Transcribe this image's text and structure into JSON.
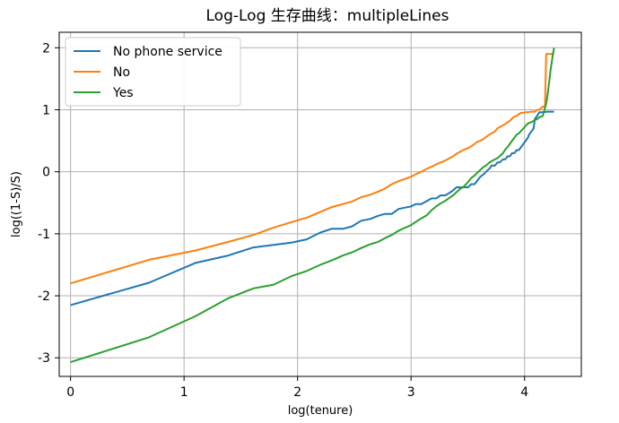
{
  "chart_data": {
    "type": "line",
    "title": "Log-Log 生存曲线：multipleLines",
    "xlabel": "log(tenure)",
    "ylabel": "log((1-S)/S)",
    "xlim": [
      -0.1,
      4.5
    ],
    "ylim": [
      -3.3,
      2.25
    ],
    "x_ticks": [
      0,
      1,
      2,
      3,
      4
    ],
    "x_tick_labels": [
      "0",
      "1",
      "2",
      "3",
      "4"
    ],
    "y_ticks": [
      -3,
      -2,
      -1,
      0,
      1,
      2
    ],
    "y_tick_labels": [
      "-3",
      "-2",
      "-1",
      "0",
      "1",
      "2"
    ],
    "grid": true,
    "legend_position": "top-left",
    "series": [
      {
        "name": "No phone service",
        "color": "#1f77b4",
        "points": [
          [
            0,
            -2.15
          ],
          [
            0.69,
            -1.79
          ],
          [
            1.1,
            -1.47
          ],
          [
            1.39,
            -1.35
          ],
          [
            1.61,
            -1.22
          ],
          [
            1.79,
            -1.18
          ],
          [
            1.95,
            -1.14
          ],
          [
            2.08,
            -1.09
          ],
          [
            2.2,
            -0.98
          ],
          [
            2.3,
            -0.92
          ],
          [
            2.4,
            -0.92
          ],
          [
            2.48,
            -0.88
          ],
          [
            2.56,
            -0.79
          ],
          [
            2.64,
            -0.76
          ],
          [
            2.71,
            -0.71
          ],
          [
            2.77,
            -0.68
          ],
          [
            2.83,
            -0.68
          ],
          [
            2.89,
            -0.6
          ],
          [
            2.94,
            -0.58
          ],
          [
            3.0,
            -0.56
          ],
          [
            3.04,
            -0.52
          ],
          [
            3.09,
            -0.52
          ],
          [
            3.14,
            -0.47
          ],
          [
            3.18,
            -0.43
          ],
          [
            3.22,
            -0.43
          ],
          [
            3.26,
            -0.38
          ],
          [
            3.3,
            -0.38
          ],
          [
            3.33,
            -0.35
          ],
          [
            3.37,
            -0.3
          ],
          [
            3.4,
            -0.25
          ],
          [
            3.43,
            -0.25
          ],
          [
            3.47,
            -0.25
          ],
          [
            3.5,
            -0.25
          ],
          [
            3.53,
            -0.2
          ],
          [
            3.56,
            -0.2
          ],
          [
            3.58,
            -0.15
          ],
          [
            3.61,
            -0.08
          ],
          [
            3.64,
            -0.04
          ],
          [
            3.66,
            0.0
          ],
          [
            3.69,
            0.05
          ],
          [
            3.71,
            0.1
          ],
          [
            3.74,
            0.1
          ],
          [
            3.76,
            0.15
          ],
          [
            3.78,
            0.15
          ],
          [
            3.81,
            0.2
          ],
          [
            3.83,
            0.2
          ],
          [
            3.85,
            0.25
          ],
          [
            3.87,
            0.25
          ],
          [
            3.89,
            0.3
          ],
          [
            3.91,
            0.3
          ],
          [
            3.93,
            0.35
          ],
          [
            3.95,
            0.35
          ],
          [
            3.97,
            0.4
          ],
          [
            3.99,
            0.45
          ],
          [
            4.01,
            0.5
          ],
          [
            4.03,
            0.55
          ],
          [
            4.04,
            0.6
          ],
          [
            4.06,
            0.65
          ],
          [
            4.08,
            0.7
          ],
          [
            4.09,
            0.85
          ],
          [
            4.11,
            0.9
          ],
          [
            4.13,
            0.96
          ],
          [
            4.14,
            0.96
          ],
          [
            4.16,
            0.96
          ],
          [
            4.2,
            0.97
          ],
          [
            4.26,
            0.97
          ]
        ]
      },
      {
        "name": "No",
        "color": "#ff7f0e",
        "points": [
          [
            0,
            -1.8
          ],
          [
            0.69,
            -1.42
          ],
          [
            1.1,
            -1.27
          ],
          [
            1.39,
            -1.13
          ],
          [
            1.61,
            -1.02
          ],
          [
            1.79,
            -0.9
          ],
          [
            1.95,
            -0.81
          ],
          [
            2.08,
            -0.74
          ],
          [
            2.2,
            -0.65
          ],
          [
            2.3,
            -0.57
          ],
          [
            2.4,
            -0.52
          ],
          [
            2.48,
            -0.48
          ],
          [
            2.56,
            -0.41
          ],
          [
            2.64,
            -0.37
          ],
          [
            2.71,
            -0.32
          ],
          [
            2.77,
            -0.27
          ],
          [
            2.83,
            -0.2
          ],
          [
            2.89,
            -0.15
          ],
          [
            2.94,
            -0.12
          ],
          [
            3.0,
            -0.08
          ],
          [
            3.04,
            -0.04
          ],
          [
            3.09,
            0.0
          ],
          [
            3.14,
            0.05
          ],
          [
            3.18,
            0.08
          ],
          [
            3.22,
            0.12
          ],
          [
            3.26,
            0.15
          ],
          [
            3.3,
            0.18
          ],
          [
            3.33,
            0.21
          ],
          [
            3.37,
            0.25
          ],
          [
            3.4,
            0.29
          ],
          [
            3.43,
            0.32
          ],
          [
            3.47,
            0.36
          ],
          [
            3.5,
            0.38
          ],
          [
            3.53,
            0.41
          ],
          [
            3.56,
            0.45
          ],
          [
            3.58,
            0.48
          ],
          [
            3.61,
            0.5
          ],
          [
            3.64,
            0.53
          ],
          [
            3.66,
            0.56
          ],
          [
            3.69,
            0.6
          ],
          [
            3.71,
            0.62
          ],
          [
            3.74,
            0.65
          ],
          [
            3.76,
            0.7
          ],
          [
            3.78,
            0.72
          ],
          [
            3.81,
            0.75
          ],
          [
            3.83,
            0.77
          ],
          [
            3.85,
            0.8
          ],
          [
            3.87,
            0.82
          ],
          [
            3.89,
            0.86
          ],
          [
            3.91,
            0.89
          ],
          [
            3.93,
            0.9
          ],
          [
            3.95,
            0.93
          ],
          [
            3.97,
            0.95
          ],
          [
            3.99,
            0.95
          ],
          [
            4.01,
            0.96
          ],
          [
            4.03,
            0.96
          ],
          [
            4.06,
            0.97
          ],
          [
            4.09,
            0.97
          ],
          [
            4.11,
            1.0
          ],
          [
            4.13,
            1.0
          ],
          [
            4.16,
            1.05
          ],
          [
            4.18,
            1.05
          ],
          [
            4.19,
            1.9
          ],
          [
            4.26,
            1.9
          ]
        ]
      },
      {
        "name": "Yes",
        "color": "#2ca02c",
        "points": [
          [
            0,
            -3.07
          ],
          [
            0.69,
            -2.67
          ],
          [
            1.1,
            -2.33
          ],
          [
            1.39,
            -2.04
          ],
          [
            1.61,
            -1.88
          ],
          [
            1.79,
            -1.82
          ],
          [
            1.95,
            -1.68
          ],
          [
            2.08,
            -1.6
          ],
          [
            2.2,
            -1.5
          ],
          [
            2.3,
            -1.43
          ],
          [
            2.4,
            -1.35
          ],
          [
            2.48,
            -1.3
          ],
          [
            2.56,
            -1.23
          ],
          [
            2.64,
            -1.17
          ],
          [
            2.71,
            -1.13
          ],
          [
            2.77,
            -1.07
          ],
          [
            2.83,
            -1.02
          ],
          [
            2.89,
            -0.95
          ],
          [
            2.94,
            -0.91
          ],
          [
            3.0,
            -0.86
          ],
          [
            3.04,
            -0.81
          ],
          [
            3.09,
            -0.75
          ],
          [
            3.14,
            -0.7
          ],
          [
            3.18,
            -0.62
          ],
          [
            3.22,
            -0.56
          ],
          [
            3.26,
            -0.51
          ],
          [
            3.3,
            -0.47
          ],
          [
            3.33,
            -0.43
          ],
          [
            3.37,
            -0.38
          ],
          [
            3.4,
            -0.33
          ],
          [
            3.43,
            -0.28
          ],
          [
            3.47,
            -0.23
          ],
          [
            3.5,
            -0.17
          ],
          [
            3.53,
            -0.1
          ],
          [
            3.56,
            -0.06
          ],
          [
            3.58,
            -0.02
          ],
          [
            3.61,
            0.03
          ],
          [
            3.64,
            0.08
          ],
          [
            3.66,
            0.1
          ],
          [
            3.69,
            0.15
          ],
          [
            3.71,
            0.17
          ],
          [
            3.74,
            0.2
          ],
          [
            3.76,
            0.22
          ],
          [
            3.78,
            0.25
          ],
          [
            3.81,
            0.3
          ],
          [
            3.83,
            0.36
          ],
          [
            3.85,
            0.4
          ],
          [
            3.87,
            0.45
          ],
          [
            3.89,
            0.5
          ],
          [
            3.91,
            0.55
          ],
          [
            3.93,
            0.6
          ],
          [
            3.95,
            0.62
          ],
          [
            3.97,
            0.66
          ],
          [
            3.99,
            0.7
          ],
          [
            4.01,
            0.74
          ],
          [
            4.03,
            0.78
          ],
          [
            4.06,
            0.8
          ],
          [
            4.09,
            0.83
          ],
          [
            4.11,
            0.85
          ],
          [
            4.13,
            0.88
          ],
          [
            4.16,
            0.9
          ],
          [
            4.19,
            1.1
          ],
          [
            4.2,
            1.2
          ],
          [
            4.22,
            1.5
          ],
          [
            4.23,
            1.65
          ],
          [
            4.25,
            1.9
          ],
          [
            4.26,
            2.0
          ]
        ]
      }
    ]
  }
}
